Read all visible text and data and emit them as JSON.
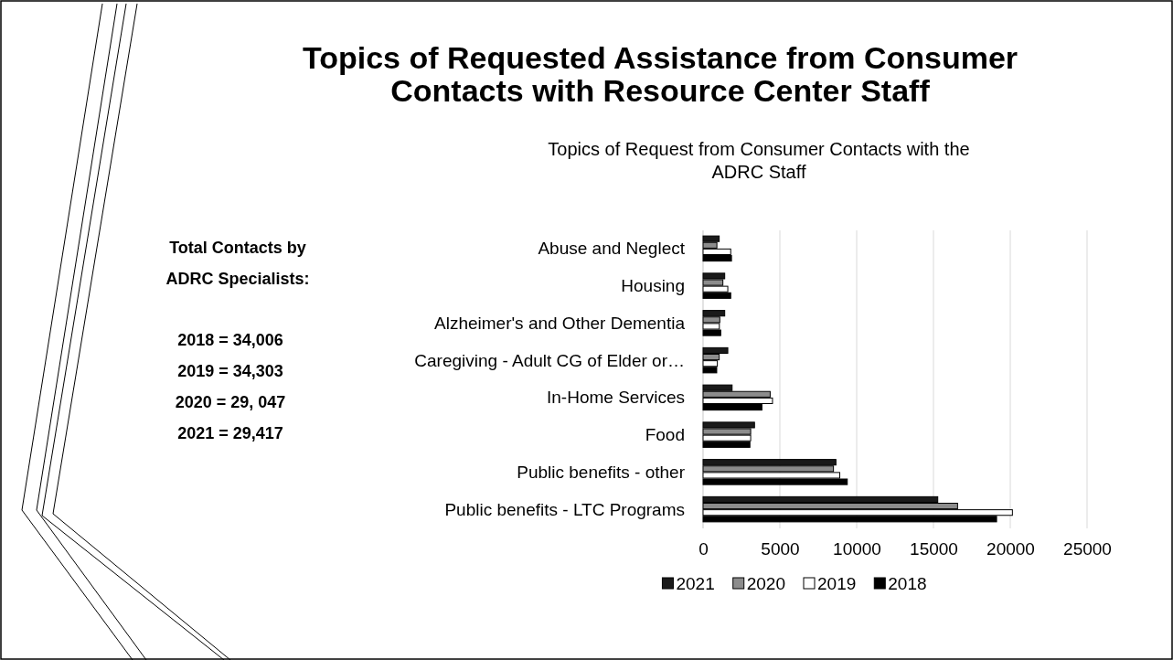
{
  "chart_data": {
    "type": "bar",
    "orientation": "horizontal",
    "title": "Topics of Requested Assistance from Consumer Contacts with Resource Center Staff",
    "subtitle": "Topics of Request from Consumer Contacts with the ADRC Staff",
    "categories": [
      "Abuse and Neglect",
      "Housing",
      "Alzheimer's and Other Dementia",
      "Caregiving - Adult CG of Elder or…",
      "In-Home Services",
      "Food",
      "Public benefits - other",
      "Public benefits - LTC Programs"
    ],
    "series": [
      {
        "name": "2021",
        "color": "#1a1a1a",
        "values": [
          1050,
          1410,
          1410,
          1610,
          1890,
          3350,
          8650,
          15280
        ]
      },
      {
        "name": "2020",
        "color": "#8c8c8c",
        "values": [
          900,
          1290,
          1090,
          1050,
          4370,
          3100,
          8490,
          16570
        ]
      },
      {
        "name": "2019",
        "color": "#ffffff",
        "values": [
          1800,
          1610,
          1060,
          930,
          4520,
          3100,
          8900,
          20140
        ]
      },
      {
        "name": "2018",
        "color": "#000000",
        "values": [
          1850,
          1800,
          1150,
          890,
          3830,
          3050,
          9390,
          19110
        ]
      }
    ],
    "xlim": [
      0,
      25000
    ],
    "xticks": [
      0,
      5000,
      10000,
      15000,
      20000,
      25000
    ],
    "grid": "x",
    "legend": "bottom",
    "annotations": [
      "Total Contacts by ADRC Specialists:",
      "2018 = 34,006",
      "2019 = 34,303",
      "2020 = 29, 047",
      "2021 = 29,417"
    ]
  }
}
